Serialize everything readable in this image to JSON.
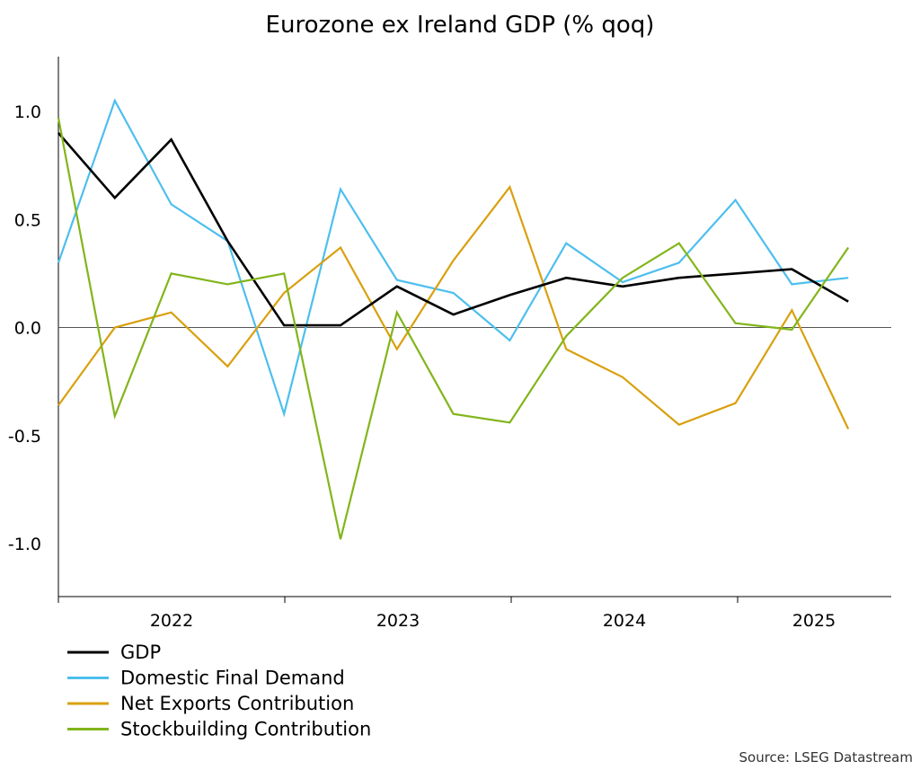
{
  "chart_data": {
    "type": "line",
    "title": "Eurozone ex Ireland GDP (% qoq)",
    "source": "Source: LSEG Datastream",
    "x": [
      "2022 Q1",
      "2022 Q2",
      "2022 Q3",
      "2022 Q4",
      "2023 Q1",
      "2023 Q2",
      "2023 Q3",
      "2023 Q4",
      "2024 Q1",
      "2024 Q2",
      "2024 Q3",
      "2024 Q4",
      "2025 Q1",
      "2025 Q2",
      "2025 Q3"
    ],
    "x_tick_labels": [
      "2022",
      "2023",
      "2024",
      "2025"
    ],
    "y_tick_labels": [
      "1.0",
      "0.5",
      "0.0",
      "-0.5",
      "-1.0"
    ],
    "y_ticks": [
      1.0,
      0.5,
      0.0,
      -0.5,
      -1.0
    ],
    "ylim": [
      -1.25,
      1.25
    ],
    "zero_line": true,
    "grid": false,
    "legend_position": "bottom-left",
    "series": [
      {
        "name": "GDP",
        "color": "#000000",
        "values": [
          0.9,
          0.6,
          0.87,
          0.4,
          0.01,
          0.01,
          0.19,
          0.06,
          0.15,
          0.23,
          0.19,
          0.23,
          0.25,
          0.27,
          0.12
        ]
      },
      {
        "name": "Domestic Final Demand",
        "color": "#4dbfee",
        "values": [
          0.3,
          1.05,
          0.57,
          0.4,
          -0.4,
          0.64,
          0.22,
          0.16,
          -0.06,
          0.39,
          0.21,
          0.3,
          0.59,
          0.2,
          0.23
        ]
      },
      {
        "name": "Net Exports Contribution",
        "color": "#d9a00f",
        "values": [
          -0.36,
          0.0,
          0.07,
          -0.18,
          0.16,
          0.37,
          -0.1,
          0.31,
          0.65,
          -0.1,
          -0.23,
          -0.45,
          -0.35,
          0.08,
          -0.47
        ]
      },
      {
        "name": "Stockbuilding Contribution",
        "color": "#82b51b",
        "values": [
          0.97,
          -0.41,
          0.25,
          0.2,
          0.25,
          -0.98,
          0.07,
          -0.4,
          -0.44,
          -0.04,
          0.23,
          0.39,
          0.02,
          -0.01,
          0.37
        ]
      }
    ]
  }
}
